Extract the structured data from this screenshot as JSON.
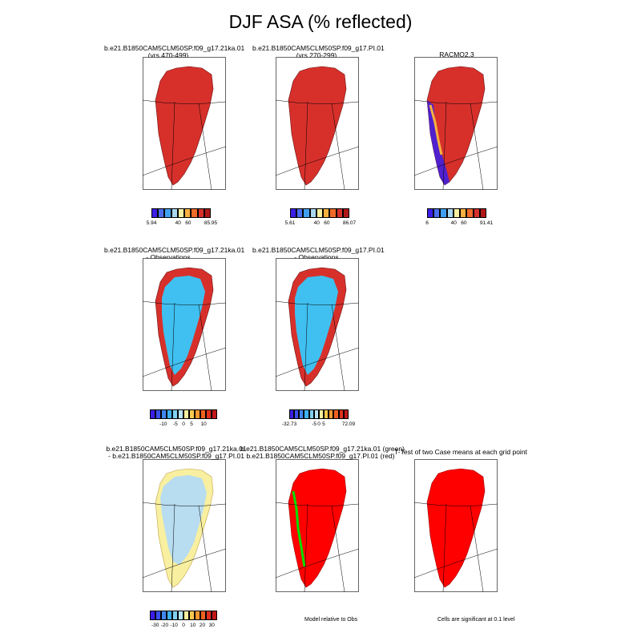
{
  "page_title": "DJF ASA (% reflected)",
  "colors": {
    "red": "#d7302b",
    "bright_red": "#ff0000",
    "green": "#00e000",
    "light_blue": "#40c0f0",
    "pale_blue": "#b8dcf0",
    "pale_yellow": "#f8f0a0",
    "purple": "#4020e0"
  },
  "panels": [
    {
      "id": "p1",
      "title_lines": [
        "b.e21.B1850CAM5CLM50SP.f09_g17.21ka.01",
        "(yrs 470-499)"
      ],
      "fill": "red"
    },
    {
      "id": "p2",
      "title_lines": [
        "b.e21.B1850CAM5CLM50SP.f09_g17.PI.01",
        "(yrs 270-299)"
      ],
      "fill": "red"
    },
    {
      "id": "p3",
      "title_lines": [
        "RACMO2.3"
      ],
      "fill": "red_mixed"
    },
    {
      "id": "p4",
      "title_lines": [
        "b.e21.B1850CAM5CLM50SP.f09_g17.21ka.01",
        "- Observations"
      ],
      "fill": "light_blue"
    },
    {
      "id": "p5",
      "title_lines": [
        "b.e21.B1850CAM5CLM50SP.f09_g17.PI.01",
        "- Observations"
      ],
      "fill": "light_blue"
    },
    {
      "id": "p6",
      "title_lines": [
        "b.e21.B1850CAM5CLM50SP.f09_g17.21ka.01",
        "- b.e21.B1850CAM5CLM50SP.f09_g17.PI.01"
      ],
      "fill": "pale_blue"
    },
    {
      "id": "p7",
      "title_lines": [
        "b.e21.B1850CAM5CLM50SP.f09_g17.21ka.01 (green)",
        "b.e21.B1850CAM5CLM50SP.f09_g17.PI.01 (red)"
      ],
      "fill": "bright_red"
    },
    {
      "id": "p8",
      "title_lines": [
        "T-Test of two Case means at each grid point"
      ],
      "fill": "bright_red"
    }
  ],
  "colorbars": [
    {
      "id": "cb1",
      "colors": [
        "#3a1ee6",
        "#4a6ef0",
        "#40a0f0",
        "#a8d8f0",
        "#f8f0a0",
        "#f8b040",
        "#f06a2a",
        "#d7302b",
        "#b01818"
      ],
      "ticks": [
        {
          "label": "5.94",
          "pos": 0
        },
        {
          "label": "40",
          "pos": 0.45
        },
        {
          "label": "60",
          "pos": 0.62
        },
        {
          "label": "85.95",
          "pos": 1
        }
      ]
    },
    {
      "id": "cb2",
      "colors": [
        "#3a1ee6",
        "#4a6ef0",
        "#40a0f0",
        "#a8d8f0",
        "#f8f0a0",
        "#f8b040",
        "#f06a2a",
        "#d7302b",
        "#b01818"
      ],
      "ticks": [
        {
          "label": "5.61",
          "pos": 0
        },
        {
          "label": "40",
          "pos": 0.45
        },
        {
          "label": "60",
          "pos": 0.62
        },
        {
          "label": "86.07",
          "pos": 1
        }
      ]
    },
    {
      "id": "cb3",
      "colors": [
        "#3a1ee6",
        "#4a6ef0",
        "#40a0f0",
        "#a8d8f0",
        "#f8f0a0",
        "#f8b040",
        "#f06a2a",
        "#d7302b",
        "#b01818"
      ],
      "ticks": [
        {
          "label": "6",
          "pos": 0
        },
        {
          "label": "40",
          "pos": 0.45
        },
        {
          "label": "60",
          "pos": 0.62
        },
        {
          "label": "91.41",
          "pos": 1
        }
      ]
    },
    {
      "id": "cb4",
      "colors": [
        "#3a1ee6",
        "#3a50ee",
        "#4088f0",
        "#40b0f0",
        "#80d0f0",
        "#b8e4f4",
        "#f8f0a0",
        "#f8c850",
        "#f89830",
        "#f06020",
        "#e03020",
        "#c01818"
      ],
      "ticks": [
        {
          "label": "-10",
          "pos": 0.2
        },
        {
          "label": "-5",
          "pos": 0.38
        },
        {
          "label": "0",
          "pos": 0.5
        },
        {
          "label": "5",
          "pos": 0.62
        },
        {
          "label": "10",
          "pos": 0.8
        }
      ]
    },
    {
      "id": "cb5",
      "colors": [
        "#3a1ee6",
        "#3a50ee",
        "#4088f0",
        "#40b0f0",
        "#80d0f0",
        "#b8e4f4",
        "#f8f0a0",
        "#f8c850",
        "#f89830",
        "#f06020",
        "#e03020",
        "#c01818"
      ],
      "ticks": [
        {
          "label": "-32.73",
          "pos": 0
        },
        {
          "label": "-5",
          "pos": 0.42
        },
        {
          "label": "0",
          "pos": 0.5
        },
        {
          "label": "5",
          "pos": 0.58
        },
        {
          "label": "72.09",
          "pos": 1
        }
      ]
    },
    {
      "id": "cb6",
      "colors": [
        "#3a1ee6",
        "#3a50ee",
        "#4088f0",
        "#40b0f0",
        "#80d0f0",
        "#b8e4f4",
        "#f8f0a0",
        "#f8c850",
        "#f89830",
        "#f06020",
        "#e03020",
        "#c01818"
      ],
      "ticks": [
        {
          "label": "-30",
          "pos": 0.08
        },
        {
          "label": "-20",
          "pos": 0.22
        },
        {
          "label": "-10",
          "pos": 0.36
        },
        {
          "label": "0",
          "pos": 0.5
        },
        {
          "label": "10",
          "pos": 0.64
        },
        {
          "label": "20",
          "pos": 0.78
        },
        {
          "label": "30",
          "pos": 0.92
        }
      ]
    }
  ],
  "notes": {
    "model_relative": "Model relative to Obs",
    "significance": "Cells are significant at 0.1 level"
  },
  "chart_data": {
    "type": "heatmap",
    "title": "DJF ASA (% reflected)",
    "panels": [
      {
        "title": "b.e21.B1850CAM5CLM50SP.f09_g17.21ka.01 (yrs 470-499)",
        "min": 5.94,
        "max": 85.95
      },
      {
        "title": "b.e21.B1850CAM5CLM50SP.f09_g17.PI.01 (yrs 270-299)",
        "min": 5.61,
        "max": 86.07
      },
      {
        "title": "RACMO2.3",
        "min": 6,
        "max": 91.41
      },
      {
        "title": "b.e21.B1850CAM5CLM50SP.f09_g17.21ka.01 - Observations",
        "ticks": [
          -10,
          -5,
          0,
          5,
          10
        ]
      },
      {
        "title": "b.e21.B1850CAM5CLM50SP.f09_g17.PI.01 - Observations",
        "min": -32.73,
        "max": 72.09
      },
      {
        "title": "b.e21.B1850CAM5CLM50SP.f09_g17.21ka.01 - b.e21.B1850CAM5CLM50SP.f09_g17.PI.01",
        "ticks": [
          -30,
          -20,
          -10,
          0,
          10,
          20,
          30
        ]
      },
      {
        "title": "b.e21.B1850CAM5CLM50SP.f09_g17.21ka.01 (green) b.e21.B1850CAM5CLM50SP.f09_g17.PI.01 (red)"
      },
      {
        "title": "T-Test of two Case means at each grid point"
      }
    ]
  }
}
